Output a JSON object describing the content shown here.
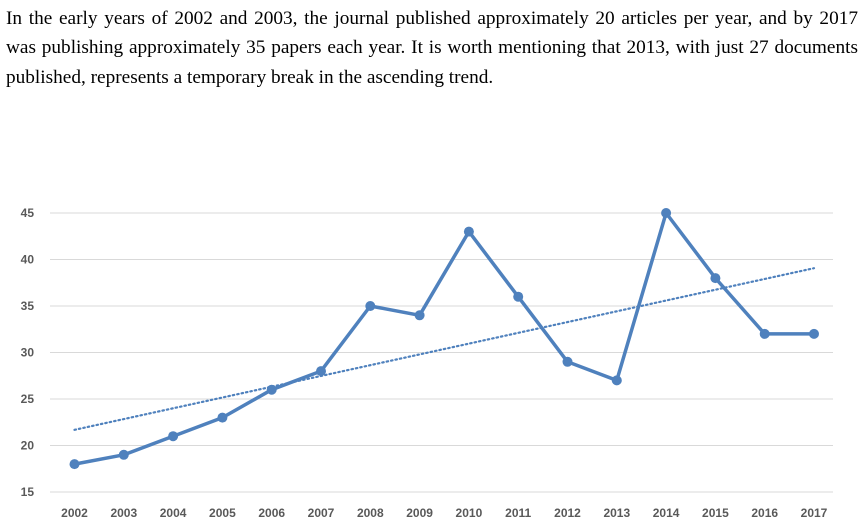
{
  "text": {
    "paragraph": "In the early years of 2002 and 2003, the journal published approximately 20 articles per year, and by 2017 was publishing approximately 35 papers each year. It is worth mentioning that 2013, with just 27 documents published, represents a temporary break in the ascending trend."
  },
  "chart_data": {
    "type": "line",
    "title": "",
    "xlabel": "",
    "ylabel": "",
    "categories": [
      "2002",
      "2003",
      "2004",
      "2005",
      "2006",
      "2007",
      "2008",
      "2009",
      "2010",
      "2011",
      "2012",
      "2013",
      "2014",
      "2015",
      "2016",
      "2017"
    ],
    "series": [
      {
        "values": [
          18,
          19,
          21,
          23,
          26,
          28,
          35,
          34,
          43,
          36,
          29,
          27,
          45,
          38,
          32,
          32
        ],
        "color": "#4f81bd"
      }
    ],
    "trendline": {
      "type": "linear",
      "style": "dotted",
      "color": "#4f81bd"
    },
    "ylim": [
      15,
      45
    ],
    "yticks": [
      15,
      20,
      25,
      30,
      35,
      40,
      45
    ],
    "grid": true,
    "legend": "none"
  }
}
